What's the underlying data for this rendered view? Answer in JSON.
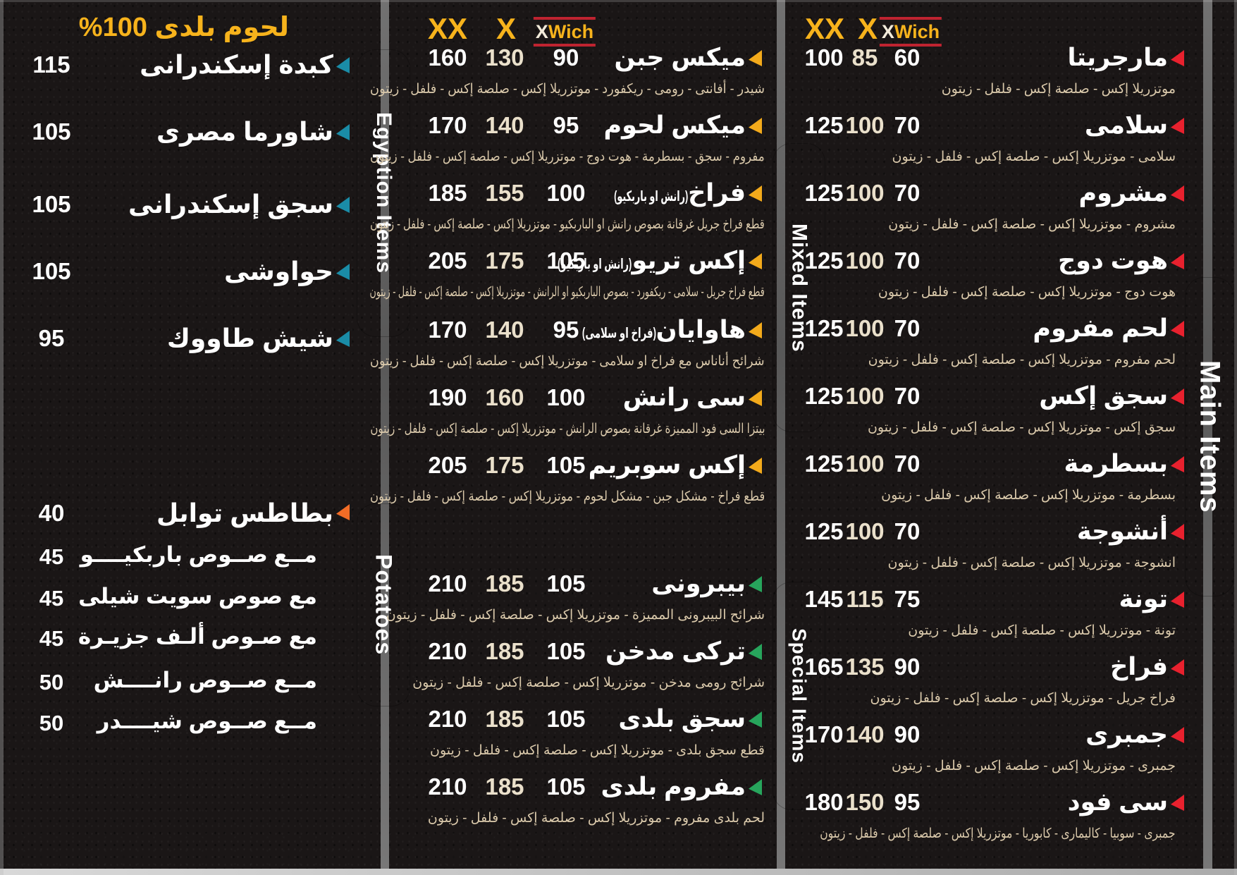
{
  "accents": {
    "red": "#e8212e",
    "yellow": "#f3aa1b",
    "green": "#27a55c",
    "teal": "#1a8ca7",
    "orange": "#f26c26",
    "gold": "#f7b31c",
    "cream": "#dac9ab"
  },
  "logo": {
    "x": "X",
    "wich": "Wich"
  },
  "price_headers": {
    "xx": "XX",
    "x": "X"
  },
  "badges": {
    "egyptian": {
      "label": "Egyption Items",
      "color": "#1a8ca7"
    },
    "potatoes": {
      "label": "Potatoes",
      "color": "#f26c26"
    },
    "mixed": {
      "label": "Mixed Items",
      "color": "#f9b42a"
    },
    "special": {
      "label": "Special Items",
      "color": "#27a55c"
    },
    "main": {
      "label": "Main Items",
      "color": "#ec1b2d"
    }
  },
  "main_column": {
    "items": [
      {
        "name": "مارجريتا",
        "prices": [
          "100",
          "85",
          "60"
        ],
        "desc": "موتزريلا إكس - صلصة إكس - فلفل - زيتون",
        "accent": "red"
      },
      {
        "name": "سلامى",
        "prices": [
          "125",
          "100",
          "70"
        ],
        "desc": "سلامى - موتزريلا إكس - صلصة إكس - فلفل - زيتون",
        "accent": "red"
      },
      {
        "name": "مشروم",
        "prices": [
          "125",
          "100",
          "70"
        ],
        "desc": "مشروم - موتزريلا إكس - صلصة إكس - فلفل - زيتون",
        "accent": "red"
      },
      {
        "name": "هوت دوج",
        "prices": [
          "125",
          "100",
          "70"
        ],
        "desc": "هوت دوج - موتزريلا إكس - صلصة إكس - فلفل - زيتون",
        "accent": "red"
      },
      {
        "name": "لحم مفروم",
        "prices": [
          "125",
          "100",
          "70"
        ],
        "desc": "لحم مفروم - موتزريلا إكس - صلصة إكس - فلفل - زيتون",
        "accent": "red"
      },
      {
        "name": "سجق إكس",
        "prices": [
          "125",
          "100",
          "70"
        ],
        "desc": "سجق إكس - موتزريلا إكس - صلصة إكس - فلفل - زيتون",
        "accent": "red"
      },
      {
        "name": "بسطرمة",
        "prices": [
          "125",
          "100",
          "70"
        ],
        "desc": "بسطرمة - موتزريلا إكس - صلصة إكس - فلفل - زيتون",
        "accent": "red"
      },
      {
        "name": "أنشوجة",
        "prices": [
          "125",
          "100",
          "70"
        ],
        "desc": "انشوجة - موتزريلا إكس - صلصة إكس - فلفل - زيتون",
        "accent": "red"
      },
      {
        "name": "تونة",
        "prices": [
          "145",
          "115",
          "75"
        ],
        "desc": "تونة - موتزريلا إكس - صلصة إكس - فلفل - زيتون",
        "accent": "red"
      },
      {
        "name": "فراخ",
        "prices": [
          "165",
          "135",
          "90"
        ],
        "desc": "فراخ جريل - موتزريلا إكس - صلصة إكس - فلفل - زيتون",
        "accent": "red"
      },
      {
        "name": "جمبرى",
        "prices": [
          "170",
          "140",
          "90"
        ],
        "desc": "جمبرى - موتزريلا إكس - صلصة إكس - فلفل - زيتون",
        "accent": "red"
      },
      {
        "name": "سى فود",
        "prices": [
          "180",
          "150",
          "95"
        ],
        "desc": "جمبرى - سوبيا - كاليمارى - كابوريا - موتزريلا إكس - صلصة إكس - فلفل - زيتون",
        "accent": "red"
      }
    ]
  },
  "middle_column": {
    "items": [
      {
        "name": "ميكس جبن",
        "prices": [
          "160",
          "130",
          "90"
        ],
        "desc": "شيدر - أفانتى - رومى - ريكفورد - موتزريلا إكس - صلصة إكس - فلفل - زيتون",
        "accent": "yellow"
      },
      {
        "name": "ميكس لحوم",
        "prices": [
          "170",
          "140",
          "95"
        ],
        "desc": "مفروم - سجق - بسطرمة - هوت دوج - موتزريلا إكس - صلصة إكس - فلفل - زيتون",
        "accent": "yellow"
      },
      {
        "name": "فراخ",
        "note": "(رانش او باربكيو)",
        "prices": [
          "185",
          "155",
          "100"
        ],
        "desc": "قطع فراخ جريل غرقانة بصوص رانش او الباربكيو - موتزريلا إكس - صلصة إكس - فلفل - زيتون",
        "accent": "yellow"
      },
      {
        "name": "إكس تريو",
        "note": "(رانش او باربكيو)",
        "prices": [
          "205",
          "175",
          "105"
        ],
        "desc": "قطع فراخ جريل - سلامى - ريكفورد - بصوص الباربكيو او الرانش - موتزريلا إكس - صلصة إكس - فلفل - زيتون",
        "accent": "yellow"
      },
      {
        "name": "هاوايان",
        "note": "(فراخ او سلامى)",
        "prices": [
          "170",
          "140",
          "95"
        ],
        "desc": "شرائح أناناس مع فراخ او سلامى - موتزريلا إكس - صلصة إكس - فلفل - زيتون",
        "accent": "yellow"
      },
      {
        "name": "سى رانش",
        "prices": [
          "190",
          "160",
          "100"
        ],
        "desc": "بيتزا السى فود المميزة غرقانة بصوص الرانش - موتزريلا إكس - صلصة إكس - فلفل - زيتون",
        "accent": "yellow"
      },
      {
        "name": "إكس سوبريم",
        "prices": [
          "205",
          "175",
          "105"
        ],
        "desc": "قطع فراخ - مشكل جبن - مشكل لحوم - موتزريلا إكس - صلصة إكس - فلفل - زيتون",
        "accent": "yellow"
      },
      {
        "name": "بيبرونى",
        "prices": [
          "210",
          "185",
          "105"
        ],
        "desc": "شرائح البيبرونى المميزة - موتزريلا إكس - صلصة إكس - فلفل - زيتون",
        "accent": "green"
      },
      {
        "name": "تركى مدخن",
        "prices": [
          "210",
          "185",
          "105"
        ],
        "desc": "شرائح رومى مدخن - موتزريلا إكس - صلصة إكس - فلفل - زيتون",
        "accent": "green"
      },
      {
        "name": "سجق بلدى",
        "prices": [
          "210",
          "185",
          "105"
        ],
        "desc": "قطع سجق بلدى - موتزريلا إكس - صلصة إكس - فلفل - زيتون",
        "accent": "green"
      },
      {
        "name": "مفروم بلدى",
        "prices": [
          "210",
          "185",
          "105"
        ],
        "desc": "لحم بلدى مفروم - موتزريلا إكس - صلصة إكس - فلفل - زيتون",
        "accent": "green"
      }
    ]
  },
  "left_column": {
    "title": "لحوم بلدى 100%",
    "items": [
      {
        "name": "كبدة إسكندرانى",
        "price": "115",
        "accent": "teal"
      },
      {
        "name": "شاورما مصرى",
        "price": "105",
        "accent": "teal"
      },
      {
        "name": "سجق إسكندرانى",
        "price": "105",
        "accent": "teal"
      },
      {
        "name": "حواوشى",
        "price": "105",
        "accent": "teal"
      },
      {
        "name": "شيش طاووك",
        "price": "95",
        "accent": "teal"
      }
    ],
    "potato_items": [
      {
        "name": "بطاطس توابل",
        "price": "40",
        "accent": "orange"
      },
      {
        "name": "مــع صــوص باربكيــــو",
        "price": "45"
      },
      {
        "name": "مع صوص سويت شيلى",
        "price": "45"
      },
      {
        "name": "مع صـوص ألـف جزيـرة",
        "price": "45"
      },
      {
        "name": "مــع صــوص رانــــش",
        "price": "50"
      },
      {
        "name": "مــع صــوص شيــــدر",
        "price": "50"
      }
    ]
  }
}
